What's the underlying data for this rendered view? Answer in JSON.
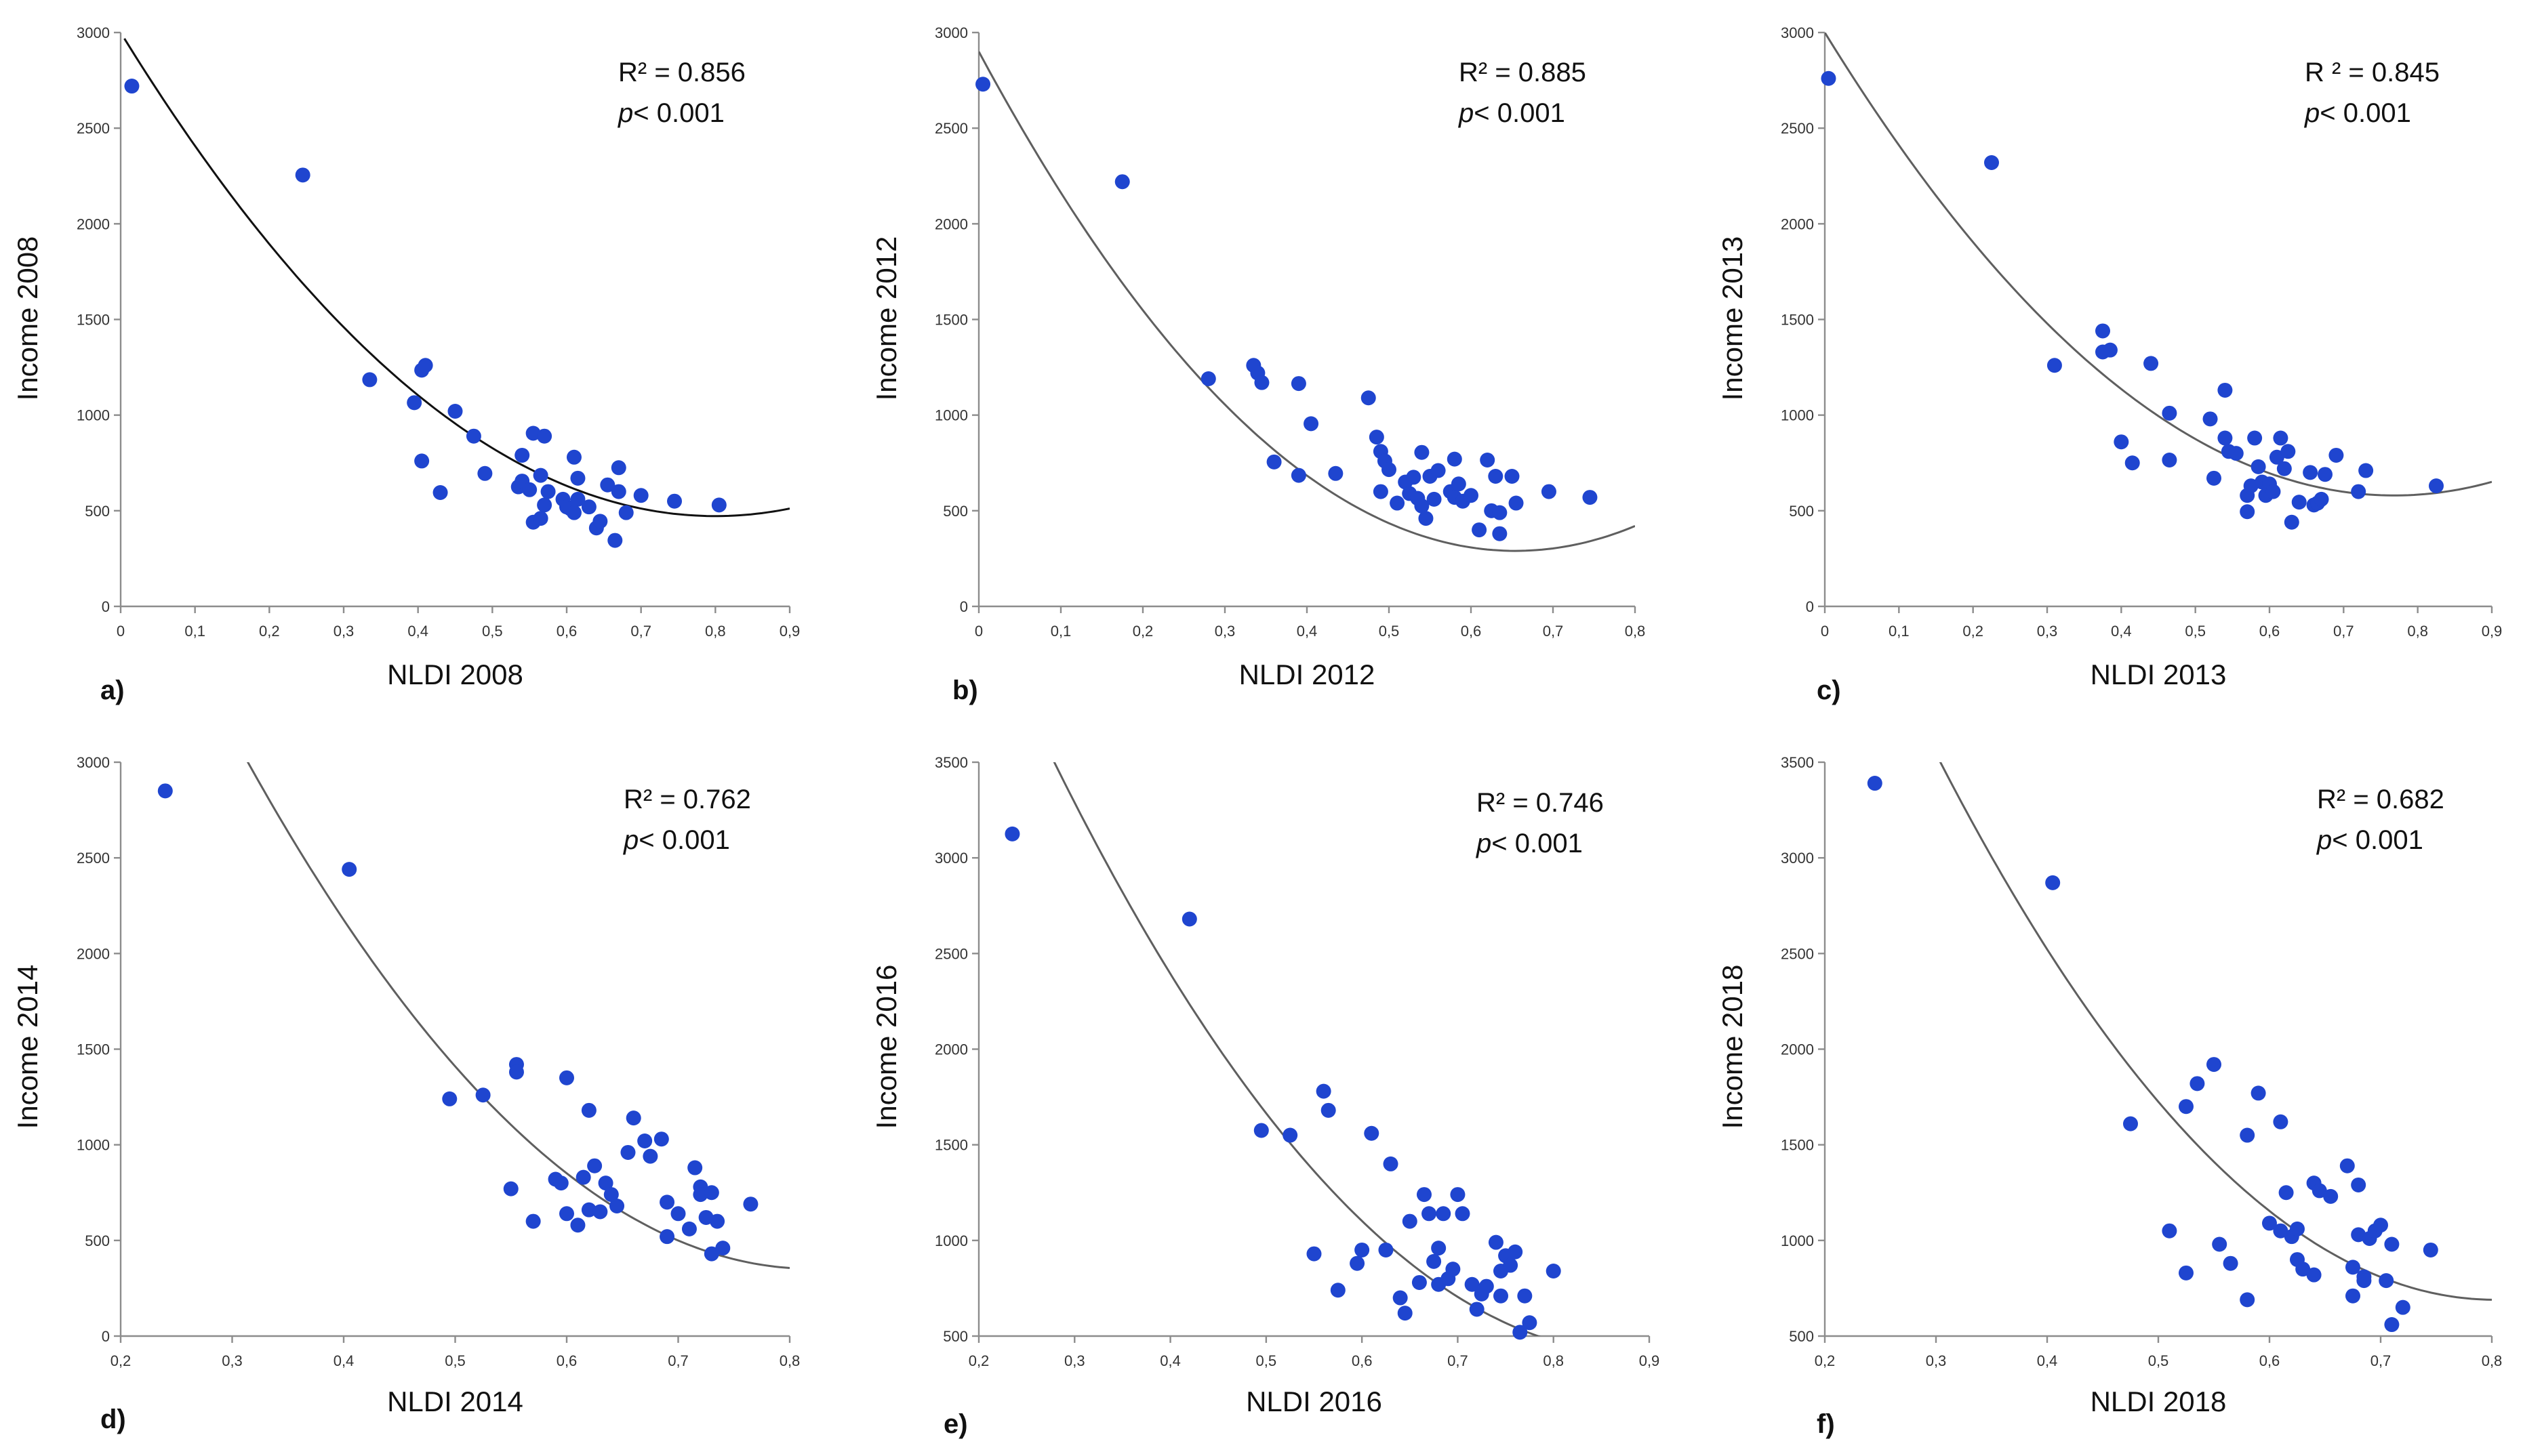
{
  "colors": {
    "point": "#1f45cf",
    "fit_dark": "#111111",
    "fit_grey": "#5f5f5f",
    "axis": "#8c8c8c"
  },
  "chart_data": [
    {
      "type": "scatter",
      "panel": "a)",
      "xlabel": "NLDI 2008",
      "ylabel": "Income 2008",
      "xlim": [
        0,
        0.9
      ],
      "ylim": [
        0,
        3000
      ],
      "xticks": [
        0,
        0.1,
        0.2,
        0.3,
        0.4,
        0.5,
        0.6,
        0.7,
        0.8,
        0.9
      ],
      "xtick_labels": [
        "0",
        "0,1",
        "0,2",
        "0,3",
        "0,4",
        "0,5",
        "0,6",
        "0,7",
        "0,8",
        "0,9"
      ],
      "yticks": [
        0,
        500,
        1000,
        1500,
        2000,
        2500,
        3000
      ],
      "ytick_labels": [
        "0",
        "500",
        "1000",
        "1500",
        "2000",
        "2500",
        "3000"
      ],
      "r2": "R² = 0.856",
      "p": "p",
      "p_rest": "< 0.001",
      "fit": {
        "coef": [
          3000,
          -6320,
          3950
        ],
        "x_range": [
          0.005,
          0.9
        ],
        "color": "#111111"
      },
      "points": [
        [
          0.015,
          2720
        ],
        [
          0.245,
          2255
        ],
        [
          0.335,
          1185
        ],
        [
          0.395,
          1065
        ],
        [
          0.405,
          1235
        ],
        [
          0.41,
          1260
        ],
        [
          0.405,
          760
        ],
        [
          0.43,
          595
        ],
        [
          0.45,
          1020
        ],
        [
          0.475,
          890
        ],
        [
          0.49,
          695
        ],
        [
          0.535,
          625
        ],
        [
          0.54,
          790
        ],
        [
          0.54,
          655
        ],
        [
          0.55,
          610
        ],
        [
          0.555,
          905
        ],
        [
          0.555,
          440
        ],
        [
          0.57,
          890
        ],
        [
          0.565,
          685
        ],
        [
          0.57,
          530
        ],
        [
          0.575,
          600
        ],
        [
          0.565,
          460
        ],
        [
          0.595,
          560
        ],
        [
          0.6,
          520
        ],
        [
          0.605,
          510
        ],
        [
          0.61,
          780
        ],
        [
          0.615,
          560
        ],
        [
          0.61,
          490
        ],
        [
          0.615,
          670
        ],
        [
          0.63,
          520
        ],
        [
          0.64,
          410
        ],
        [
          0.645,
          445
        ],
        [
          0.655,
          635
        ],
        [
          0.67,
          600
        ],
        [
          0.67,
          725
        ],
        [
          0.665,
          345
        ],
        [
          0.68,
          490
        ],
        [
          0.7,
          580
        ],
        [
          0.745,
          550
        ],
        [
          0.805,
          530
        ]
      ]
    },
    {
      "type": "scatter",
      "panel": "b)",
      "xlabel": "NLDI 2012",
      "ylabel": "Income 2012",
      "xlim": [
        0,
        0.8
      ],
      "ylim": [
        0,
        3000
      ],
      "xticks": [
        0,
        0.1,
        0.2,
        0.3,
        0.4,
        0.5,
        0.6,
        0.7,
        0.8
      ],
      "xtick_labels": [
        "0",
        "0,1",
        "0,2",
        "0,3",
        "0,4",
        "0,5",
        "0,6",
        "0,7",
        "0,8"
      ],
      "yticks": [
        0,
        500,
        1000,
        1500,
        2000,
        2500,
        3000
      ],
      "ytick_labels": [
        "0",
        "500",
        "1000",
        "1500",
        "2000",
        "2500",
        "3000"
      ],
      "r2": "R² = 0.885",
      "p": "p",
      "p_rest": "< 0.001",
      "fit": {
        "coef": [
          2900,
          -7980,
          6100
        ],
        "x_range": [
          0,
          0.8
        ],
        "color": "#5f5f5f"
      },
      "points": [
        [
          0.005,
          2730
        ],
        [
          0.175,
          2220
        ],
        [
          0.28,
          1190
        ],
        [
          0.335,
          1260
        ],
        [
          0.34,
          1220
        ],
        [
          0.345,
          1170
        ],
        [
          0.36,
          755
        ],
        [
          0.39,
          1165
        ],
        [
          0.39,
          685
        ],
        [
          0.405,
          955
        ],
        [
          0.435,
          695
        ],
        [
          0.475,
          1090
        ],
        [
          0.485,
          885
        ],
        [
          0.49,
          810
        ],
        [
          0.49,
          600
        ],
        [
          0.495,
          760
        ],
        [
          0.5,
          715
        ],
        [
          0.51,
          540
        ],
        [
          0.52,
          650
        ],
        [
          0.525,
          590
        ],
        [
          0.53,
          675
        ],
        [
          0.535,
          565
        ],
        [
          0.54,
          805
        ],
        [
          0.54,
          525
        ],
        [
          0.545,
          460
        ],
        [
          0.55,
          680
        ],
        [
          0.555,
          560
        ],
        [
          0.56,
          710
        ],
        [
          0.575,
          600
        ],
        [
          0.58,
          570
        ],
        [
          0.58,
          770
        ],
        [
          0.585,
          640
        ],
        [
          0.59,
          550
        ],
        [
          0.6,
          580
        ],
        [
          0.61,
          400
        ],
        [
          0.62,
          765
        ],
        [
          0.625,
          500
        ],
        [
          0.63,
          680
        ],
        [
          0.635,
          490
        ],
        [
          0.635,
          380
        ],
        [
          0.65,
          680
        ],
        [
          0.655,
          540
        ],
        [
          0.695,
          600
        ],
        [
          0.745,
          570
        ]
      ]
    },
    {
      "type": "scatter",
      "panel": "c)",
      "xlabel": "NLDI 2013",
      "ylabel": "Income 2013",
      "xlim": [
        0,
        0.9
      ],
      "ylim": [
        0,
        3000
      ],
      "xticks": [
        0,
        0.1,
        0.2,
        0.3,
        0.4,
        0.5,
        0.6,
        0.7,
        0.8,
        0.9
      ],
      "xtick_labels": [
        "0",
        "0,1",
        "0,2",
        "0,3",
        "0,4",
        "0,5",
        "0,6",
        "0,7",
        "0,8",
        "0,9"
      ],
      "yticks": [
        0,
        500,
        1000,
        1500,
        2000,
        2500,
        3000
      ],
      "ytick_labels": [
        "0",
        "500",
        "1000",
        "1500",
        "2000",
        "2500",
        "3000"
      ],
      "r2": "R ² = 0.845",
      "p": "p",
      "p_rest": "< 0.001",
      "fit": {
        "coef": [
          3000,
          -6300,
          4100
        ],
        "x_range": [
          0,
          0.9
        ],
        "color": "#5f5f5f"
      },
      "points": [
        [
          0.005,
          2760
        ],
        [
          0.225,
          2320
        ],
        [
          0.31,
          1260
        ],
        [
          0.375,
          1440
        ],
        [
          0.375,
          1330
        ],
        [
          0.385,
          1340
        ],
        [
          0.4,
          860
        ],
        [
          0.415,
          750
        ],
        [
          0.44,
          1270
        ],
        [
          0.465,
          1010
        ],
        [
          0.465,
          765
        ],
        [
          0.52,
          980
        ],
        [
          0.525,
          670
        ],
        [
          0.54,
          1130
        ],
        [
          0.54,
          880
        ],
        [
          0.545,
          810
        ],
        [
          0.555,
          800
        ],
        [
          0.57,
          495
        ],
        [
          0.57,
          580
        ],
        [
          0.575,
          630
        ],
        [
          0.58,
          880
        ],
        [
          0.585,
          730
        ],
        [
          0.59,
          650
        ],
        [
          0.595,
          580
        ],
        [
          0.6,
          640
        ],
        [
          0.605,
          600
        ],
        [
          0.61,
          780
        ],
        [
          0.615,
          880
        ],
        [
          0.62,
          720
        ],
        [
          0.625,
          810
        ],
        [
          0.63,
          440
        ],
        [
          0.64,
          545
        ],
        [
          0.655,
          700
        ],
        [
          0.66,
          530
        ],
        [
          0.665,
          540
        ],
        [
          0.67,
          560
        ],
        [
          0.675,
          690
        ],
        [
          0.69,
          790
        ],
        [
          0.72,
          600
        ],
        [
          0.73,
          710
        ],
        [
          0.825,
          630
        ]
      ]
    },
    {
      "type": "scatter",
      "panel": "d)",
      "xlabel": "NLDI 2014",
      "ylabel": "Income 2014",
      "xlim": [
        0.2,
        0.8
      ],
      "ylim": [
        0,
        3000
      ],
      "xticks": [
        0.2,
        0.3,
        0.4,
        0.5,
        0.6,
        0.7,
        0.8
      ],
      "xtick_labels": [
        "0,2",
        "0,3",
        "0,4",
        "0,5",
        "0,6",
        "0,7",
        "0,8"
      ],
      "yticks": [
        0,
        500,
        1000,
        1500,
        2000,
        2500,
        3000
      ],
      "ytick_labels": [
        "0",
        "500",
        "1000",
        "1500",
        "2000",
        "2500",
        "3000"
      ],
      "r2": "R² = 0.762",
      "p": "p",
      "p_rest": "< 0.001",
      "fit": {
        "coef": [
          7316,
          -17000,
          10375
        ],
        "x_range": [
          0.245,
          0.8
        ],
        "color": "#5f5f5f"
      },
      "points": [
        [
          0.24,
          2850
        ],
        [
          0.405,
          2440
        ],
        [
          0.495,
          1240
        ],
        [
          0.525,
          1260
        ],
        [
          0.55,
          770
        ],
        [
          0.555,
          1420
        ],
        [
          0.555,
          1380
        ],
        [
          0.57,
          600
        ],
        [
          0.59,
          820
        ],
        [
          0.595,
          800
        ],
        [
          0.6,
          1350
        ],
        [
          0.6,
          640
        ],
        [
          0.61,
          580
        ],
        [
          0.615,
          830
        ],
        [
          0.62,
          1180
        ],
        [
          0.62,
          660
        ],
        [
          0.625,
          890
        ],
        [
          0.63,
          650
        ],
        [
          0.635,
          800
        ],
        [
          0.64,
          740
        ],
        [
          0.645,
          680
        ],
        [
          0.655,
          960
        ],
        [
          0.66,
          1140
        ],
        [
          0.67,
          1020
        ],
        [
          0.675,
          940
        ],
        [
          0.685,
          1030
        ],
        [
          0.69,
          700
        ],
        [
          0.69,
          520
        ],
        [
          0.7,
          640
        ],
        [
          0.71,
          560
        ],
        [
          0.715,
          880
        ],
        [
          0.72,
          780
        ],
        [
          0.72,
          740
        ],
        [
          0.725,
          620
        ],
        [
          0.73,
          750
        ],
        [
          0.73,
          430
        ],
        [
          0.735,
          600
        ],
        [
          0.74,
          460
        ],
        [
          0.765,
          690
        ]
      ]
    },
    {
      "type": "scatter",
      "panel": "e)",
      "xlabel": "NLDI 2016",
      "ylabel": "Income 2016",
      "xlim": [
        0.2,
        0.9
      ],
      "ylim": [
        500,
        3500
      ],
      "xticks": [
        0.2,
        0.3,
        0.4,
        0.5,
        0.6,
        0.7,
        0.8,
        0.9
      ],
      "xtick_labels": [
        "0,2",
        "0,3",
        "0,4",
        "0,5",
        "0,6",
        "0,7",
        "0,8",
        "0,9"
      ],
      "yticks": [
        500,
        1000,
        1500,
        2000,
        2500,
        3000,
        3500
      ],
      "ytick_labels": [
        "500",
        "1000",
        "1500",
        "2000",
        "2500",
        "3000",
        "3500"
      ],
      "r2": "R² = 0.746",
      "p": "p",
      "p_rest": "< 0.001",
      "fit": {
        "coef": [
          6970,
          -14760,
          8300
        ],
        "x_range": [
          0.215,
          0.9
        ],
        "color": "#5f5f5f"
      },
      "points": [
        [
          0.235,
          3125
        ],
        [
          0.42,
          2680
        ],
        [
          0.495,
          1575
        ],
        [
          0.525,
          1550
        ],
        [
          0.55,
          930
        ],
        [
          0.56,
          1780
        ],
        [
          0.565,
          1680
        ],
        [
          0.575,
          740
        ],
        [
          0.595,
          880
        ],
        [
          0.6,
          950
        ],
        [
          0.61,
          1560
        ],
        [
          0.625,
          950
        ],
        [
          0.63,
          1400
        ],
        [
          0.64,
          700
        ],
        [
          0.645,
          620
        ],
        [
          0.65,
          1100
        ],
        [
          0.66,
          780
        ],
        [
          0.665,
          1240
        ],
        [
          0.67,
          1140
        ],
        [
          0.675,
          890
        ],
        [
          0.68,
          960
        ],
        [
          0.68,
          770
        ],
        [
          0.685,
          1140
        ],
        [
          0.69,
          800
        ],
        [
          0.695,
          850
        ],
        [
          0.7,
          1240
        ],
        [
          0.705,
          1140
        ],
        [
          0.715,
          770
        ],
        [
          0.72,
          640
        ],
        [
          0.725,
          720
        ],
        [
          0.73,
          760
        ],
        [
          0.74,
          990
        ],
        [
          0.745,
          840
        ],
        [
          0.745,
          710
        ],
        [
          0.75,
          920
        ],
        [
          0.755,
          870
        ],
        [
          0.76,
          940
        ],
        [
          0.765,
          520
        ],
        [
          0.77,
          710
        ],
        [
          0.775,
          570
        ],
        [
          0.8,
          840
        ]
      ]
    },
    {
      "type": "scatter",
      "panel": "f)",
      "xlabel": "NLDI 2018",
      "ylabel": "Income 2018",
      "xlim": [
        0.2,
        0.8
      ],
      "ylim": [
        500,
        3500
      ],
      "xticks": [
        0.2,
        0.3,
        0.4,
        0.5,
        0.6,
        0.7,
        0.8
      ],
      "xtick_labels": [
        "0,2",
        "0,3",
        "0,4",
        "0,5",
        "0,6",
        "0,7",
        "0,8"
      ],
      "yticks": [
        500,
        1000,
        1500,
        2000,
        2500,
        3000,
        3500
      ],
      "ytick_labels": [
        "500",
        "1000",
        "1500",
        "2000",
        "2500",
        "3000",
        "3500"
      ],
      "r2": "R² = 0.682",
      "p": "p",
      "p_rest": "< 0.001",
      "fit": {
        "coef": [
          7970,
          -18140,
          11300
        ],
        "x_range": [
          0.255,
          0.8
        ],
        "color": "#5f5f5f"
      },
      "points": [
        [
          0.245,
          3390
        ],
        [
          0.405,
          2870
        ],
        [
          0.475,
          1610
        ],
        [
          0.51,
          1050
        ],
        [
          0.525,
          1700
        ],
        [
          0.525,
          830
        ],
        [
          0.535,
          1820
        ],
        [
          0.55,
          1920
        ],
        [
          0.555,
          980
        ],
        [
          0.565,
          880
        ],
        [
          0.58,
          1550
        ],
        [
          0.58,
          690
        ],
        [
          0.59,
          1770
        ],
        [
          0.6,
          1090
        ],
        [
          0.61,
          1620
        ],
        [
          0.61,
          1050
        ],
        [
          0.615,
          1250
        ],
        [
          0.62,
          1020
        ],
        [
          0.625,
          1060
        ],
        [
          0.625,
          900
        ],
        [
          0.63,
          850
        ],
        [
          0.64,
          820
        ],
        [
          0.64,
          1300
        ],
        [
          0.645,
          1260
        ],
        [
          0.655,
          1230
        ],
        [
          0.67,
          1390
        ],
        [
          0.675,
          860
        ],
        [
          0.675,
          710
        ],
        [
          0.68,
          1290
        ],
        [
          0.68,
          1030
        ],
        [
          0.685,
          810
        ],
        [
          0.685,
          790
        ],
        [
          0.69,
          1010
        ],
        [
          0.695,
          1050
        ],
        [
          0.7,
          1080
        ],
        [
          0.705,
          790
        ],
        [
          0.71,
          980
        ],
        [
          0.71,
          560
        ],
        [
          0.72,
          650
        ],
        [
          0.745,
          950
        ]
      ]
    }
  ]
}
